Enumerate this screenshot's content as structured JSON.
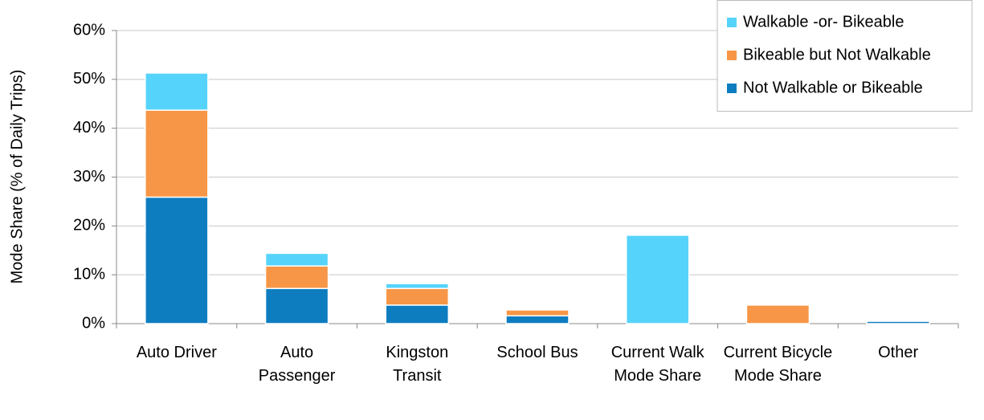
{
  "chart_data": {
    "type": "stacked_bar",
    "y_label": "Mode Share (% of Daily Trips)",
    "categories": [
      "Auto Driver",
      "Auto Passenger",
      "Kingston Transit",
      "School Bus",
      "Current Walk Mode Share",
      "Current Bicycle Mode Share",
      "Other"
    ],
    "series": [
      {
        "name": "Not Walkable or Bikeable",
        "color": "#0e7dc0",
        "values": [
          25.9,
          7.2,
          3.8,
          1.6,
          0,
          0,
          0.5
        ]
      },
      {
        "name": "Bikeable but Not Walkable",
        "color": "#f79646",
        "values": [
          17.8,
          4.6,
          3.4,
          1.2,
          0,
          3.8,
          0
        ]
      },
      {
        "name": "Walkable -or- Bikeable",
        "color": "#56d3fb",
        "values": [
          7.6,
          2.6,
          1.0,
          0,
          18.1,
          0,
          0.2
        ]
      }
    ],
    "ylim": [
      0,
      60
    ],
    "yticks": [
      {
        "value": 0,
        "label": "0%"
      },
      {
        "value": 10,
        "label": "10%"
      },
      {
        "value": 20,
        "label": "20%"
      },
      {
        "value": 30,
        "label": "30%"
      },
      {
        "value": 40,
        "label": "40%"
      },
      {
        "value": 50,
        "label": "50%"
      },
      {
        "value": 60,
        "label": "60%"
      }
    ],
    "grid": true,
    "legend": "top-right"
  }
}
